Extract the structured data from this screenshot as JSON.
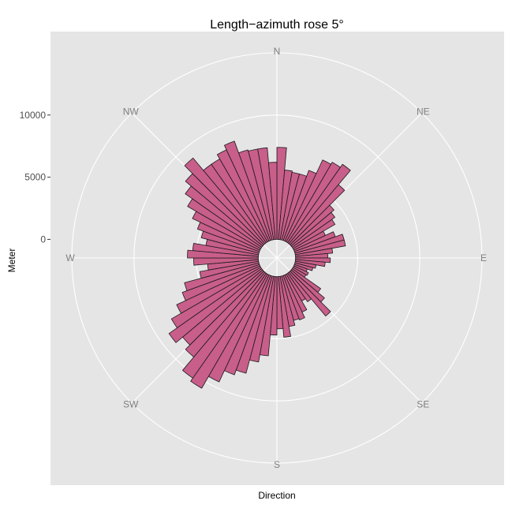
{
  "chart_data": {
    "type": "bar",
    "subtype": "polar-rose",
    "title": "Length−azimuth rose 5°",
    "xlabel": "Direction",
    "ylabel": "Meter",
    "bin_width_deg": 5,
    "direction_labels": [
      "N",
      "NE",
      "E",
      "SE",
      "S",
      "SW",
      "W",
      "NW"
    ],
    "direction_azimuths": [
      0,
      45,
      90,
      135,
      180,
      225,
      270,
      315
    ],
    "radial_ticks": [
      0,
      5000,
      10000
    ],
    "radial_tick_labels": [
      "0",
      "5000",
      "10000"
    ],
    "grid_levels": [
      5000,
      10000,
      15000
    ],
    "ylim": [
      -1500,
      15000
    ],
    "bins_start_deg": [
      0,
      5,
      10,
      15,
      20,
      25,
      30,
      35,
      40,
      45,
      50,
      55,
      60,
      65,
      70,
      75,
      80,
      85,
      90,
      95,
      100,
      105,
      110,
      115,
      120,
      125,
      130,
      135,
      140,
      145,
      150,
      155,
      160,
      165,
      170,
      175,
      180,
      185,
      190,
      195,
      200,
      205,
      210,
      215,
      220,
      225,
      230,
      235,
      240,
      245,
      250,
      255,
      260,
      265,
      270,
      275,
      280,
      285,
      290,
      295,
      300,
      305,
      310,
      315,
      320,
      325,
      330,
      335,
      340,
      345,
      350,
      355
    ],
    "values": [
      7400,
      5600,
      5500,
      5500,
      6000,
      7200,
      7400,
      7700,
      6200,
      4500,
      4200,
      3900,
      2800,
      3500,
      4100,
      4100,
      3000,
      2600,
      2800,
      2400,
      1700,
      1500,
      1100,
      1300,
      1200,
      2800,
      3500,
      4600,
      2800,
      2500,
      3300,
      3800,
      3700,
      4100,
      4900,
      4200,
      4700,
      6400,
      7000,
      8100,
      8500,
      9500,
      10600,
      10300,
      8900,
      8400,
      9100,
      8300,
      7400,
      6600,
      6200,
      4800,
      4100,
      5200,
      5700,
      5300,
      4300,
      4800,
      5300,
      6000,
      6800,
      7500,
      8100,
      9000,
      7700,
      7700,
      8100,
      8500,
      7500,
      7400,
      7400,
      6200
    ],
    "colors": {
      "bar_fill": "#c85e8a",
      "bar_stroke": "#1a1a1a",
      "panel_background": "#e5e5e5",
      "grid": "#ffffff"
    },
    "grid": true,
    "legend": "none"
  }
}
